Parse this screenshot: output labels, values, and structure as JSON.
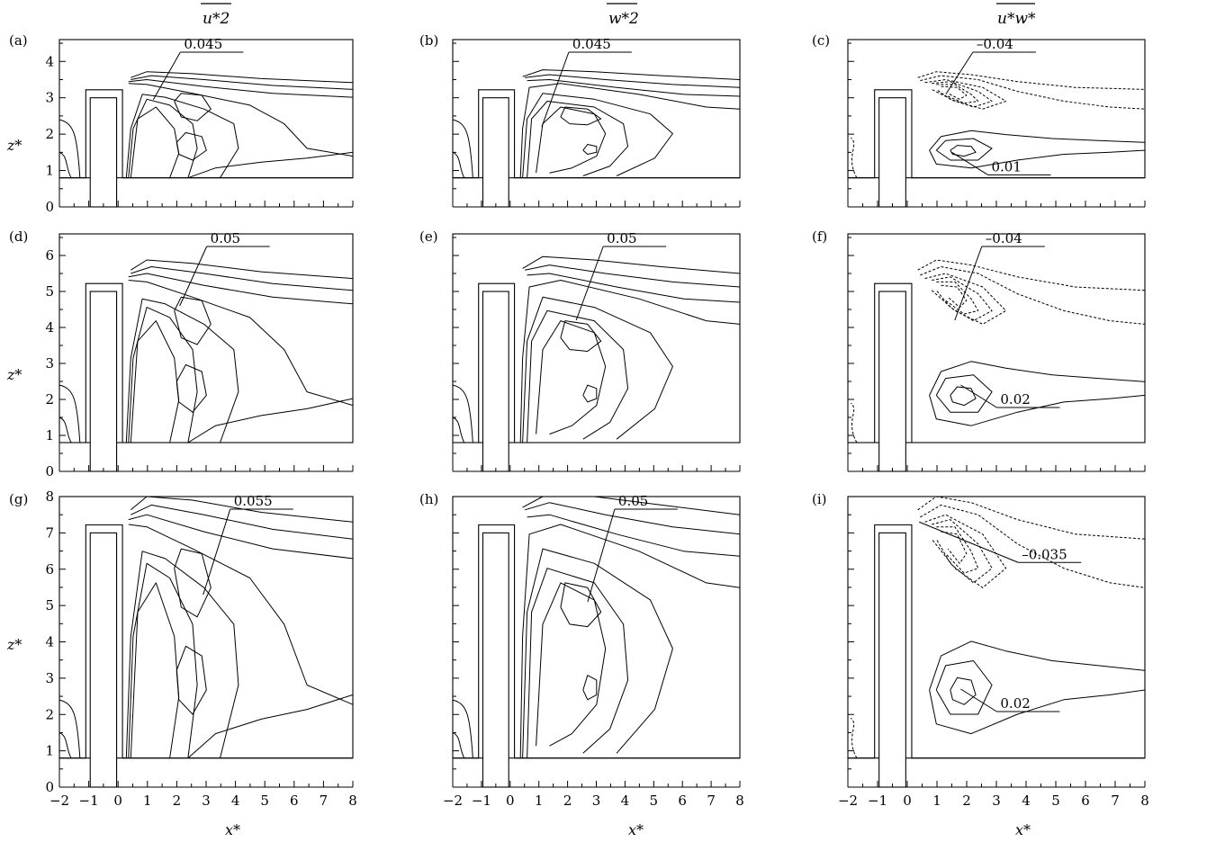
{
  "figure": {
    "column_titles": [
      {
        "text": "u*2",
        "bar": true
      },
      {
        "text": "w*2",
        "bar": true
      },
      {
        "text": "u*w*",
        "bar": true
      }
    ],
    "xlabel": "x*",
    "ylabel": "z*",
    "panel_labels": [
      "(a)",
      "(b)",
      "(c)",
      "(d)",
      "(e)",
      "(f)",
      "(g)",
      "(h)",
      "(i)"
    ]
  },
  "chart_data": [
    {
      "panel": "a",
      "type": "contour",
      "field": "u*2",
      "xlim": [
        -2,
        8
      ],
      "ylim": [
        0,
        4.6
      ],
      "yticks": [
        0,
        1,
        2,
        3,
        4
      ],
      "building_height": 3,
      "annotations": [
        {
          "text": "0.045",
          "points_to": [
            1.2,
            2.95
          ]
        }
      ]
    },
    {
      "panel": "b",
      "type": "contour",
      "field": "w*2",
      "xlim": [
        -2,
        8
      ],
      "ylim": [
        0,
        4.6
      ],
      "building_height": 3,
      "annotations": [
        {
          "text": "0.045",
          "points_to": [
            1.1,
            2.2
          ]
        }
      ]
    },
    {
      "panel": "c",
      "type": "contour",
      "field": "u*w*",
      "xlim": [
        -2,
        8
      ],
      "ylim": [
        0,
        4.6
      ],
      "building_height": 3,
      "annotations": [
        {
          "text": "–0.04",
          "points_to": [
            1.3,
            3.1
          ]
        },
        {
          "text": "0.01",
          "points_to": [
            1.5,
            1.5
          ]
        }
      ]
    },
    {
      "panel": "d",
      "type": "contour",
      "field": "u*2",
      "xlim": [
        -2,
        8
      ],
      "ylim": [
        0,
        6.6
      ],
      "yticks": [
        0,
        1,
        2,
        3,
        4,
        5,
        6
      ],
      "building_height": 5,
      "annotations": [
        {
          "text": "0.05",
          "points_to": [
            2.1,
            4.6
          ]
        }
      ]
    },
    {
      "panel": "e",
      "type": "contour",
      "field": "w*2",
      "xlim": [
        -2,
        8
      ],
      "ylim": [
        0,
        6.6
      ],
      "building_height": 5,
      "annotations": [
        {
          "text": "0.05",
          "points_to": [
            2.3,
            4.2
          ]
        }
      ]
    },
    {
      "panel": "f",
      "type": "contour",
      "field": "u*w*",
      "xlim": [
        -2,
        8
      ],
      "ylim": [
        0,
        6.6
      ],
      "building_height": 5,
      "annotations": [
        {
          "text": "–0.04",
          "points_to": [
            1.6,
            4.2
          ]
        },
        {
          "text": "0.02",
          "points_to": [
            1.8,
            2.4
          ]
        }
      ]
    },
    {
      "panel": "g",
      "type": "contour",
      "field": "u*2",
      "xlim": [
        -2,
        8
      ],
      "ylim": [
        0,
        8
      ],
      "xticks": [
        -2,
        -1,
        0,
        1,
        2,
        3,
        4,
        5,
        6,
        7,
        8
      ],
      "yticks": [
        0,
        1,
        2,
        3,
        4,
        5,
        6,
        7,
        8
      ],
      "building_height": 7,
      "annotations": [
        {
          "text": "0.055",
          "points_to": [
            2.9,
            5.3
          ]
        }
      ]
    },
    {
      "panel": "h",
      "type": "contour",
      "field": "w*2",
      "xlim": [
        -2,
        8
      ],
      "ylim": [
        0,
        8
      ],
      "xticks": [
        -2,
        -1,
        0,
        1,
        2,
        3,
        4,
        5,
        6,
        7,
        8
      ],
      "building_height": 7,
      "annotations": [
        {
          "text": "0.05",
          "points_to": [
            2.7,
            5.1
          ]
        }
      ]
    },
    {
      "panel": "i",
      "type": "contour",
      "field": "u*w*",
      "xlim": [
        -2,
        8
      ],
      "ylim": [
        0,
        8
      ],
      "xticks": [
        -2,
        -1,
        0,
        1,
        2,
        3,
        4,
        5,
        6,
        7,
        8
      ],
      "building_height": 7,
      "annotations": [
        {
          "text": "–0.035",
          "points_to": [
            0.4,
            7.3
          ]
        },
        {
          "text": "0.02",
          "points_to": [
            1.8,
            2.7
          ]
        }
      ]
    }
  ]
}
